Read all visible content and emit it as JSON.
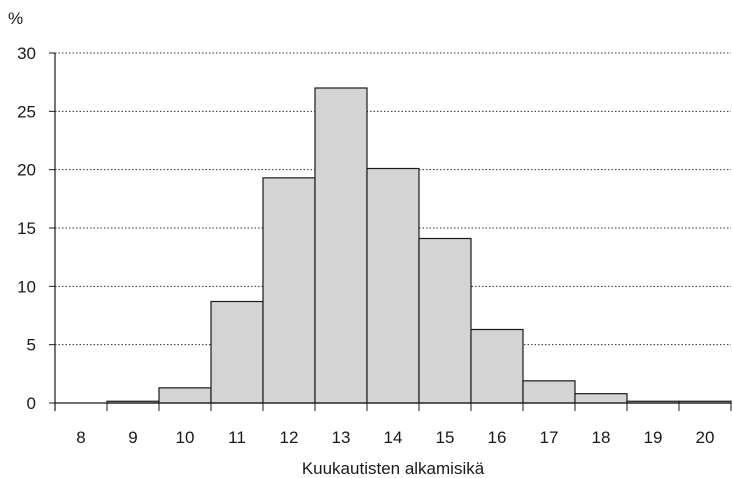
{
  "chart_data": {
    "type": "bar",
    "title": "",
    "xlabel": "Kuukautisten alkamisikä",
    "ylabel": "%",
    "categories": [
      "8",
      "9",
      "10",
      "11",
      "12",
      "13",
      "14",
      "15",
      "16",
      "17",
      "18",
      "19",
      "20"
    ],
    "values": [
      0,
      0.15,
      1.3,
      8.7,
      19.3,
      27.0,
      20.1,
      14.1,
      6.3,
      1.9,
      0.8,
      0.15,
      0.15
    ],
    "ylim": [
      0,
      30
    ],
    "yticks": [
      "0",
      "5",
      "10",
      "15",
      "20",
      "25",
      "30"
    ],
    "grid": "horizontal dotted",
    "bar_color": "#d4d4d4",
    "bar_edge_color": "#1a1a1a"
  }
}
